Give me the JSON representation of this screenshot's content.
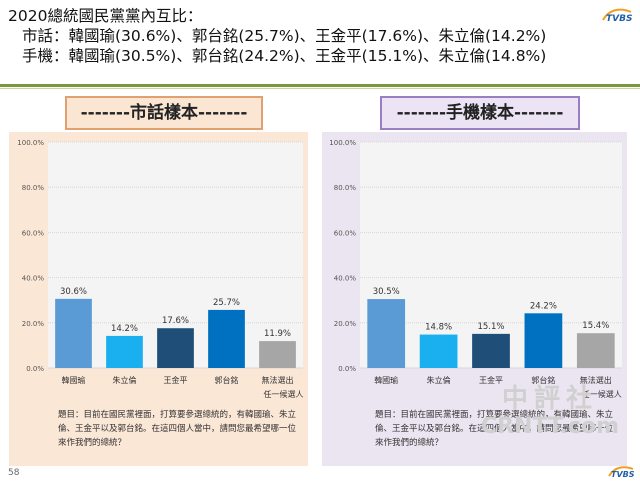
{
  "header": {
    "line1": "2020總統國民黨黨內互比：",
    "line2": "市話：韓國瑜(30.6%)、郭台銘(25.7%)、王金平(17.6%)、朱立倫(14.2%)",
    "line3": "手機：韓國瑜(30.5%)、郭台銘(24.2%)、王金平(15.1%)、朱立倫(14.8%)"
  },
  "tags": {
    "left": "-------市話樣本-------",
    "right": "-------手機樣本-------"
  },
  "notes": {
    "left": "題目：目前在國民黨裡面，打算要參選總統的，有韓國瑜、朱立倫、王金平以及郭台銘。在這四個人當中，請問您最希望哪一位來作我們的總統？",
    "right": "題目：目前在國民黨裡面，打算要參選總統的，有韓國瑜、朱立倫、王金平以及郭台銘。在這四個人當中，請問您最希望哪一位來作我們的總統？"
  },
  "page_number": "58",
  "watermark": {
    "cn": "中評社",
    "en": "CRNTT.com"
  },
  "colors": [
    "#5b9bd5",
    "#1ab0f0",
    "#1f4e79",
    "#0070c0",
    "#a6a6a6"
  ],
  "chart_data": [
    {
      "type": "bar",
      "categories": [
        "韓國瑜",
        "朱立倫",
        "王金平",
        "郭台銘",
        "無法選出任一候選人"
      ],
      "values": [
        30.6,
        14.2,
        17.6,
        25.7,
        11.9
      ],
      "value_labels": [
        "30.6%",
        "14.2%",
        "17.6%",
        "25.7%",
        "11.9%"
      ],
      "ylim": [
        0,
        100
      ],
      "yticks": [
        "0.0%",
        "20.0%",
        "40.0%",
        "60.0%",
        "80.0%",
        "100.0%"
      ],
      "grid": true
    },
    {
      "type": "bar",
      "categories": [
        "韓國瑜",
        "朱立倫",
        "王金平",
        "郭台銘",
        "無法選出任一候選人"
      ],
      "values": [
        30.5,
        14.8,
        15.1,
        24.2,
        15.4
      ],
      "value_labels": [
        "30.5%",
        "14.8%",
        "15.1%",
        "24.2%",
        "15.4%"
      ],
      "ylim": [
        0,
        100
      ],
      "yticks": [
        "0.0%",
        "20.0%",
        "40.0%",
        "60.0%",
        "80.0%",
        "100.0%"
      ],
      "grid": true
    }
  ]
}
